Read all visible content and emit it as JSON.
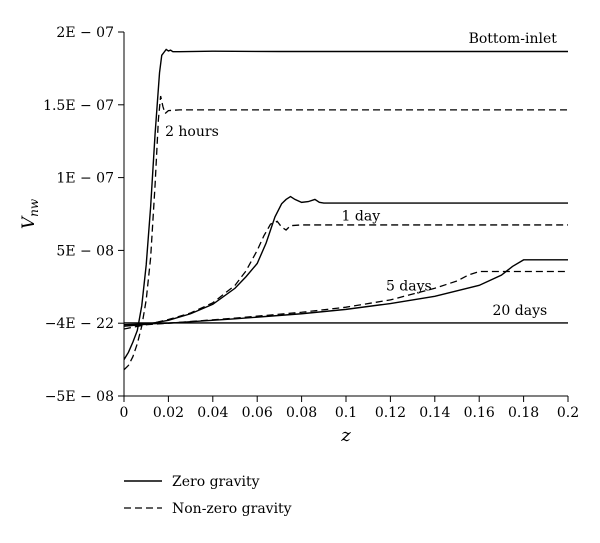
{
  "chart_data": {
    "type": "line",
    "title": "",
    "xlabel": "z",
    "ylabel_main": "V",
    "ylabel_sub": "nw",
    "xlim": [
      0,
      0.2
    ],
    "ylim": [
      -5e-08,
      2e-07
    ],
    "x_ticks": [
      0,
      0.02,
      0.04,
      0.06,
      0.08,
      0.1,
      0.12,
      0.14,
      0.16,
      0.18,
      0.2
    ],
    "x_tick_labels": [
      "0",
      "0.02",
      "0.04",
      "0.06",
      "0.08",
      "0.1",
      "0.12",
      "0.14",
      "0.16",
      "0.18",
      "0.2"
    ],
    "y_ticks": [
      -5e-08,
      0,
      5e-08,
      1e-07,
      1.5e-07,
      2e-07
    ],
    "y_tick_labels": [
      "−5E − 08",
      "−4E − 22",
      "5E − 08",
      "1E − 07",
      "1.5E − 07",
      "2E − 07"
    ],
    "grid": false,
    "legend_position": "bottom-left",
    "annotations": [
      {
        "text": "Bottom-inlet",
        "x": 0.195,
        "y": 1.96e-07
      },
      {
        "text": "2 hours",
        "x": 0.0185,
        "y": 1.32e-07
      },
      {
        "text": "1 day",
        "x": 0.098,
        "y": 7.4e-08
      },
      {
        "text": "5 days",
        "x": 0.118,
        "y": 2.6e-08
      },
      {
        "text": "20 days",
        "x": 0.166,
        "y": 9e-09
      }
    ],
    "series": [
      {
        "name": "Zero gravity",
        "group": "zero",
        "time": "2 hours",
        "x": [
          0,
          0.002,
          0.004,
          0.006,
          0.008,
          0.01,
          0.012,
          0.014,
          0.016,
          0.017,
          0.018,
          0.019,
          0.02,
          0.021,
          0.022,
          0.025,
          0.04,
          0.07,
          0.1,
          0.14,
          0.2
        ],
        "y": [
          -2.5e-08,
          -2e-08,
          -1.3e-08,
          -5e-09,
          1.2e-08,
          4e-08,
          8e-08,
          1.3e-07,
          1.72e-07,
          1.84e-07,
          1.86e-07,
          1.88e-07,
          1.87e-07,
          1.875e-07,
          1.865e-07,
          1.865e-07,
          1.868e-07,
          1.866e-07,
          1.866e-07,
          1.866e-07,
          1.866e-07
        ]
      },
      {
        "name": "Non-zero gravity",
        "group": "nonzero",
        "time": "2 hours",
        "x": [
          0,
          0.002,
          0.004,
          0.006,
          0.008,
          0.01,
          0.012,
          0.014,
          0.0155,
          0.0165,
          0.0175,
          0.0185,
          0.02,
          0.025,
          0.05,
          0.1,
          0.15,
          0.2
        ],
        "y": [
          -3.2e-08,
          -2.9e-08,
          -2.3e-08,
          -1.4e-08,
          -2e-09,
          1.6e-08,
          4.5e-08,
          9.5e-08,
          1.4e-07,
          1.56e-07,
          1.49e-07,
          1.44e-07,
          1.46e-07,
          1.465e-07,
          1.465e-07,
          1.465e-07,
          1.465e-07,
          1.465e-07
        ]
      },
      {
        "name": "Zero gravity",
        "group": "zero",
        "time": "1 day",
        "x": [
          0,
          0.01,
          0.02,
          0.03,
          0.04,
          0.05,
          0.055,
          0.06,
          0.064,
          0.068,
          0.071,
          0.073,
          0.075,
          0.077,
          0.08,
          0.083,
          0.086,
          0.088,
          0.09,
          0.1,
          0.15,
          0.2
        ],
        "y": [
          -2e-09,
          -8e-10,
          2e-09,
          6.5e-09,
          1.3e-08,
          2.4e-08,
          3.2e-08,
          4.1e-08,
          5.5e-08,
          7.3e-08,
          8.2e-08,
          8.5e-08,
          8.7e-08,
          8.5e-08,
          8.3e-08,
          8.35e-08,
          8.5e-08,
          8.3e-08,
          8.25e-08,
          8.25e-08,
          8.25e-08,
          8.25e-08
        ]
      },
      {
        "name": "Non-zero gravity",
        "group": "nonzero",
        "time": "1 day",
        "x": [
          0,
          0.01,
          0.02,
          0.03,
          0.04,
          0.05,
          0.055,
          0.06,
          0.063,
          0.066,
          0.069,
          0.071,
          0.073,
          0.075,
          0.08,
          0.1,
          0.15,
          0.2
        ],
        "y": [
          -4e-09,
          -1e-09,
          2.5e-09,
          7e-09,
          1.4e-08,
          2.6e-08,
          3.6e-08,
          5e-08,
          6e-08,
          6.8e-08,
          7e-08,
          6.6e-08,
          6.4e-08,
          6.7e-08,
          6.75e-08,
          6.75e-08,
          6.75e-08,
          6.75e-08
        ]
      },
      {
        "name": "Zero gravity",
        "group": "zero",
        "time": "5 days",
        "x": [
          0,
          0.02,
          0.05,
          0.08,
          0.1,
          0.12,
          0.14,
          0.16,
          0.17,
          0.175,
          0.18,
          0.19,
          0.2
        ],
        "y": [
          -1e-09,
          0,
          3e-09,
          6.5e-09,
          9.5e-09,
          1.35e-08,
          1.85e-08,
          2.6e-08,
          3.3e-08,
          3.9e-08,
          4.35e-08,
          4.35e-08,
          4.35e-08
        ]
      },
      {
        "name": "Non-zero gravity",
        "group": "nonzero",
        "time": "5 days",
        "x": [
          0,
          0.02,
          0.05,
          0.08,
          0.1,
          0.12,
          0.14,
          0.15,
          0.155,
          0.16,
          0.17,
          0.18,
          0.2
        ],
        "y": [
          -2e-09,
          0,
          3.5e-09,
          7.5e-09,
          1.1e-08,
          1.6e-08,
          2.4e-08,
          2.9e-08,
          3.3e-08,
          3.55e-08,
          3.55e-08,
          3.55e-08,
          3.55e-08
        ]
      },
      {
        "name": "Zero gravity",
        "group": "zero",
        "time": "20 days",
        "x": [
          0,
          0.05,
          0.1,
          0.15,
          0.2
        ],
        "y": [
          2e-10,
          2e-10,
          2e-10,
          2e-10,
          2e-10
        ]
      }
    ]
  },
  "legend": {
    "items": [
      {
        "label": "Zero gravity",
        "style": "solid"
      },
      {
        "label": "Non-zero gravity",
        "style": "dashed"
      }
    ]
  }
}
